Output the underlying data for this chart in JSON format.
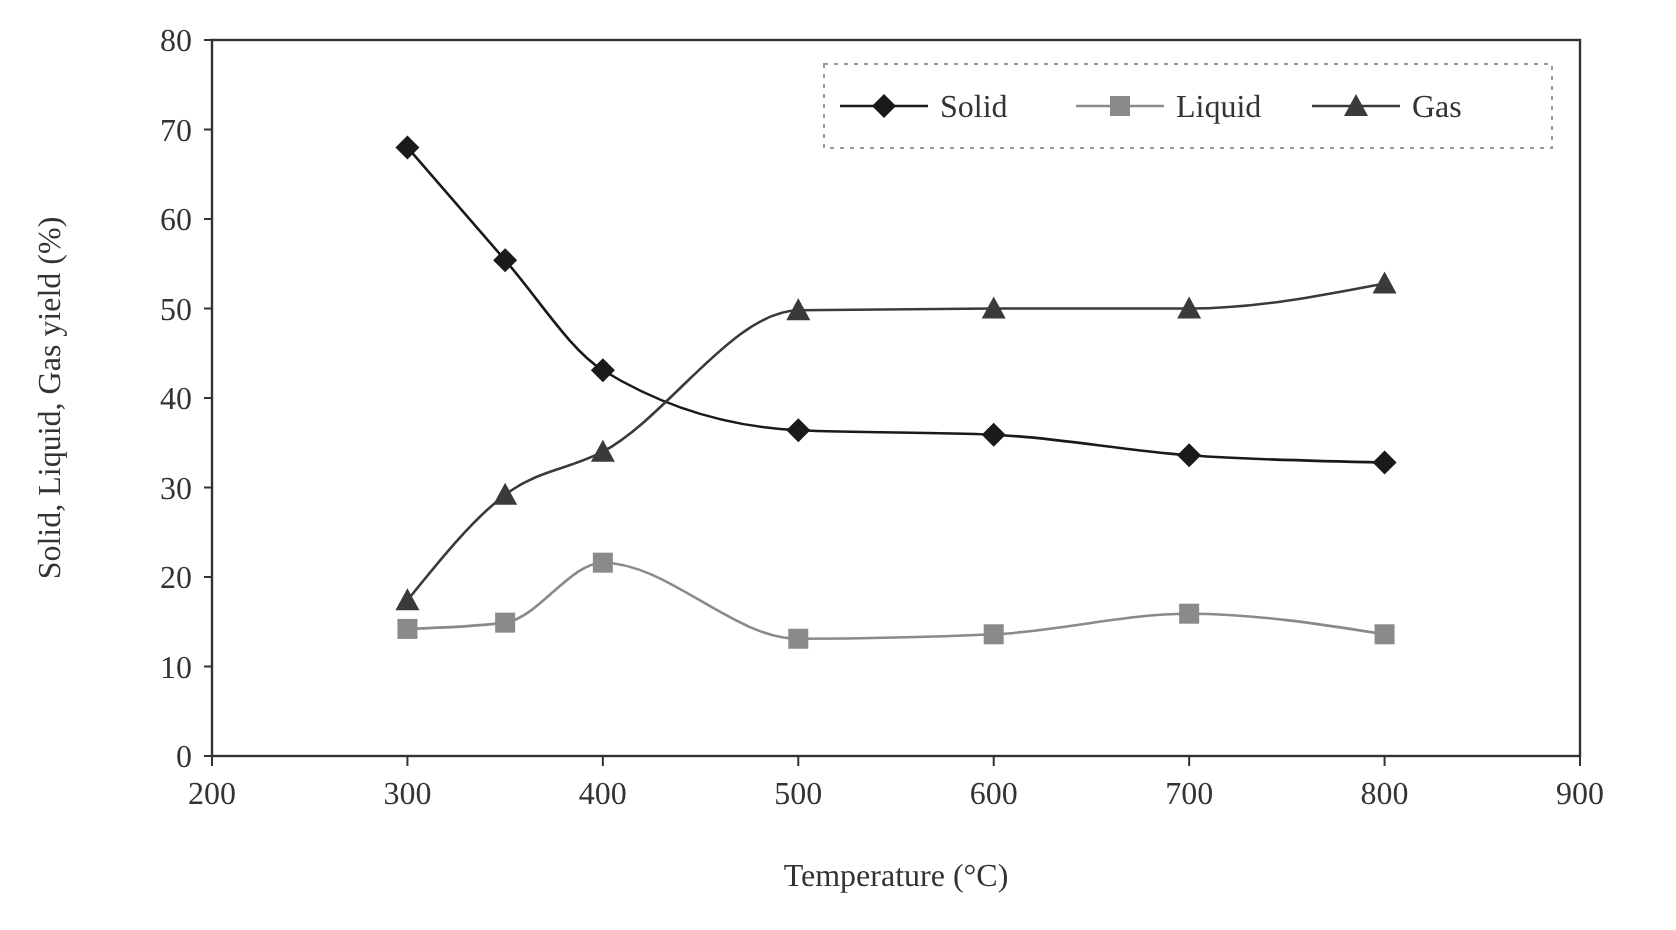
{
  "chart_data": {
    "type": "line",
    "xlabel": "Temperature (°C)",
    "ylabel": "Solid, Liquid, Gas yield (%)",
    "x": [
      300,
      350,
      400,
      500,
      600,
      700,
      800
    ],
    "xlim": [
      200,
      900
    ],
    "xticks": [
      200,
      300,
      400,
      500,
      600,
      700,
      800,
      900
    ],
    "ylim": [
      0,
      80
    ],
    "yticks": [
      0,
      10,
      20,
      30,
      40,
      50,
      60,
      70,
      80
    ],
    "grid": false,
    "legend": "top right",
    "line_style": "solid",
    "series": [
      {
        "name": "Solid",
        "color": "#1a1a1a",
        "marker": "diamond",
        "values": [
          68,
          55.4,
          43.1,
          36.4,
          35.9,
          33.6,
          32.8
        ]
      },
      {
        "name": "Liquid",
        "color": "#8a8a8a",
        "marker": "square",
        "values": [
          14.2,
          14.9,
          21.6,
          13.1,
          13.6,
          15.9,
          13.6
        ]
      },
      {
        "name": "Gas",
        "color": "#3a3a3a",
        "marker": "triangle",
        "values": [
          17.4,
          29.2,
          34,
          49.8,
          50,
          50,
          52.8
        ]
      }
    ]
  }
}
